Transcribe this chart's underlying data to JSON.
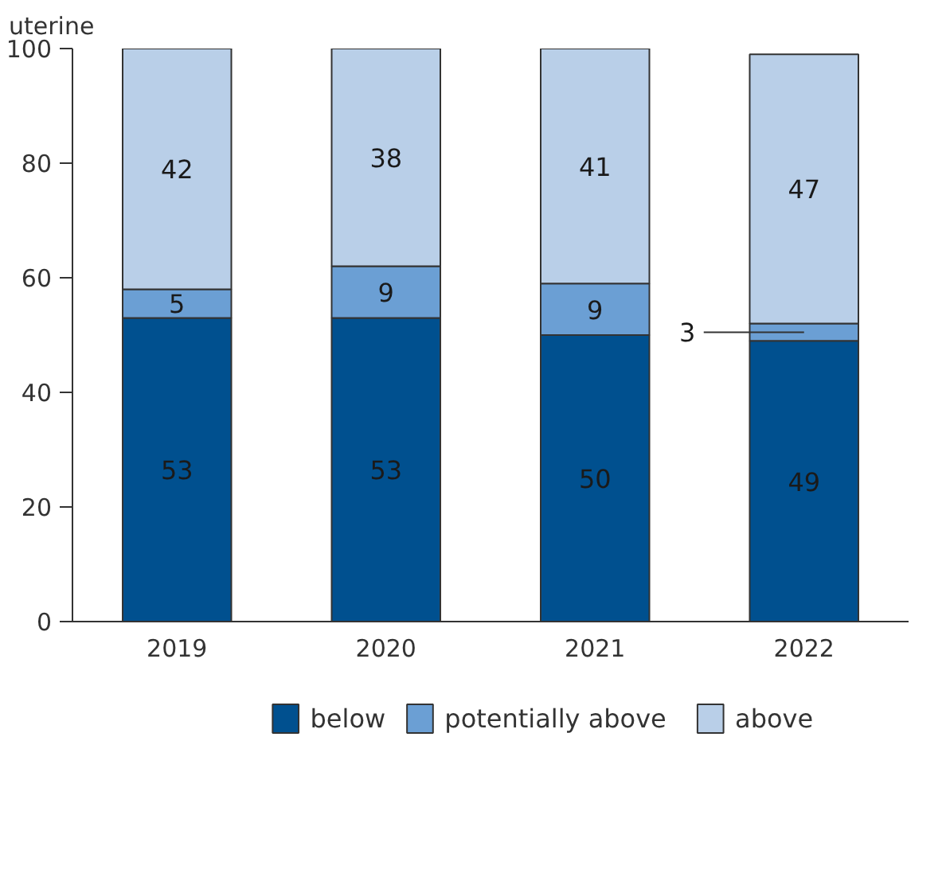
{
  "chart_data": {
    "type": "bar",
    "stacked": true,
    "ylabel": "uterine",
    "categories": [
      "2019",
      "2020",
      "2021",
      "2022"
    ],
    "series": [
      {
        "name": "below",
        "color": "#00508f",
        "values": [
          53,
          53,
          50,
          49
        ]
      },
      {
        "name": "potentially above",
        "color": "#6b9fd4",
        "values": [
          5,
          9,
          9,
          3
        ]
      },
      {
        "name": "above",
        "color": "#b9cfe8",
        "values": [
          42,
          38,
          41,
          47
        ]
      }
    ],
    "ylim": [
      0,
      100
    ],
    "yticks": [
      0,
      20,
      40,
      60,
      80,
      100
    ],
    "grid": false,
    "legend": "bottom",
    "data_labels": true
  }
}
